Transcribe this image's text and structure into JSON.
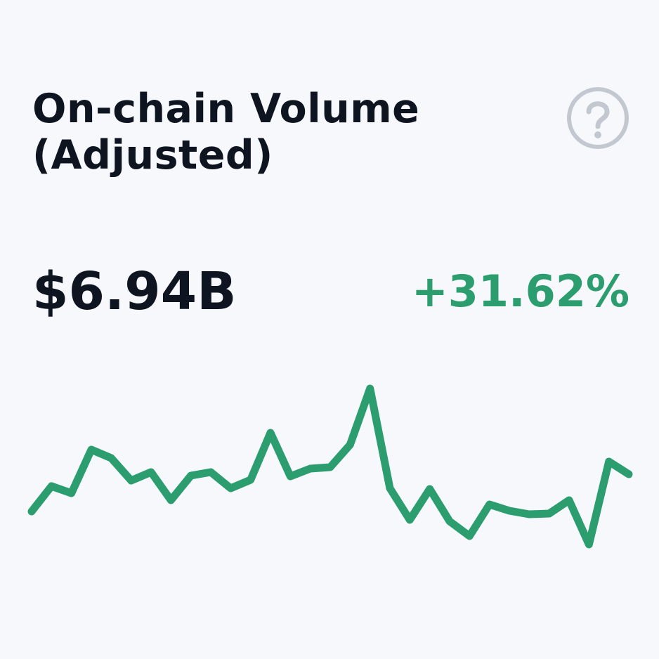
{
  "header": {
    "title": "On-chain Volume (Adjusted)",
    "value": "$6.94B",
    "change": "+31.62%"
  },
  "chart_data": {
    "type": "line",
    "color": "#2b9d6e",
    "values": [
      72,
      108,
      98,
      160,
      148,
      116,
      128,
      88,
      123,
      128,
      105,
      117,
      184,
      122,
      133,
      135,
      167,
      247,
      105,
      60,
      104,
      58,
      37,
      82,
      73,
      68,
      69,
      88,
      25,
      143,
      125
    ],
    "ylim": [
      0,
      260
    ]
  }
}
